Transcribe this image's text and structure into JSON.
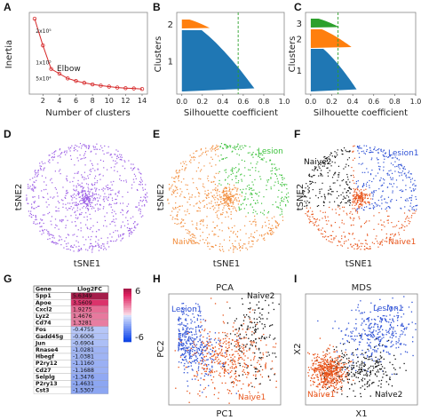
{
  "panels": {
    "A": "A",
    "B": "B",
    "C": "C",
    "D": "D",
    "E": "E",
    "F": "F",
    "G": "G",
    "H": "H",
    "I": "I"
  },
  "colors": {
    "silhouette1": "#1f77b4",
    "silhouette2": "#ff7f0e",
    "silhouette3": "#2ca02c",
    "elbow": "#d62728",
    "naive1": "#e8541a",
    "lesion1": "#2f52d6",
    "naive2": "#111111",
    "purple": "#9b5de5",
    "green": "#3cc13c",
    "orange": "#f28c3a"
  },
  "chart_data": [
    {
      "panel": "A",
      "type": "line",
      "xlabel": "Number of clusters",
      "ylabel": "Inertia",
      "x": [
        1,
        2,
        3,
        4,
        5,
        6,
        7,
        8,
        9,
        10,
        11,
        12,
        13,
        14
      ],
      "values": [
        240000,
        155000,
        80000,
        65000,
        50000,
        42000,
        36000,
        31000,
        27000,
        24000,
        21000,
        19000,
        18000,
        16500
      ],
      "xticks": [
        "2",
        "4",
        "6",
        "8",
        "10",
        "12",
        "14"
      ],
      "yticks": [
        "5x10⁴",
        "1x10⁵",
        "2x10⁵"
      ],
      "annotation": "Elbow",
      "ylim": [
        0,
        260000
      ]
    },
    {
      "panel": "B",
      "type": "bar",
      "xlabel": "Silhouette coefficient",
      "ylabel": "Clusters",
      "categories": [
        "1",
        "2"
      ],
      "xticks": [
        "0.0",
        "0.2",
        "0.4",
        "0.6",
        "0.8",
        "1.0"
      ],
      "xlim": [
        -0.05,
        1.0
      ],
      "average_line": 0.55,
      "max_values": [
        0.73,
        0.28
      ]
    },
    {
      "panel": "C",
      "type": "bar",
      "xlabel": "Silhouette coefficient",
      "ylabel": "Clusters",
      "categories": [
        "1",
        "2",
        "3"
      ],
      "xticks": [
        "0.0",
        "0.2",
        "0.4",
        "0.6",
        "0.8",
        "1.0"
      ],
      "xlim": [
        -0.05,
        1.0
      ],
      "average_line": 0.26,
      "max_values": [
        0.45,
        0.4,
        0.28
      ]
    },
    {
      "panel": "D",
      "type": "scatter",
      "xlabel": "tSNE1",
      "ylabel": "tSNE2"
    },
    {
      "panel": "E",
      "type": "scatter",
      "xlabel": "tSNE1",
      "ylabel": "tSNE2",
      "labels": [
        "Lesion",
        "Naive"
      ]
    },
    {
      "panel": "F",
      "type": "scatter",
      "xlabel": "tSNE1",
      "ylabel": "tSNE2",
      "labels": [
        "Lesion1",
        "Naive2",
        "Naive1"
      ]
    },
    {
      "panel": "G",
      "type": "table",
      "columns": [
        "Gene",
        "Llog2FC"
      ],
      "rows": [
        [
          "Spp1",
          "5.6349"
        ],
        [
          "Apoe",
          "3.5609"
        ],
        [
          "Cxcl2",
          "1.9275"
        ],
        [
          "Lyz2",
          "1.4676"
        ],
        [
          "Cd74",
          "1.3281"
        ],
        [
          "Fos",
          "-0.4755"
        ],
        [
          "Gadd45g",
          "-0.6006"
        ],
        [
          "Jun",
          "-0.6904"
        ],
        [
          "Rnase4",
          "-1.0281"
        ],
        [
          "Hbegf",
          "-1.0381"
        ],
        [
          "P2ry12",
          "-1.1160"
        ],
        [
          "Cd27",
          "-1.1688"
        ],
        [
          "Selplg",
          "-1.3476"
        ],
        [
          "P2ry13",
          "-1.4631"
        ],
        [
          "Cst3",
          "-1.5307"
        ]
      ],
      "colorbar_ticks": [
        "6",
        "-6"
      ]
    },
    {
      "panel": "H",
      "type": "scatter",
      "title": "PCA",
      "xlabel": "PC1",
      "ylabel": "PC2",
      "labels": [
        "Lesion1",
        "Naive2",
        "Naive1"
      ]
    },
    {
      "panel": "I",
      "type": "scatter",
      "title": "MDS",
      "xlabel": "X1",
      "ylabel": "X2",
      "labels": [
        "Lesion1",
        "Naive1",
        "Naive2"
      ]
    }
  ]
}
